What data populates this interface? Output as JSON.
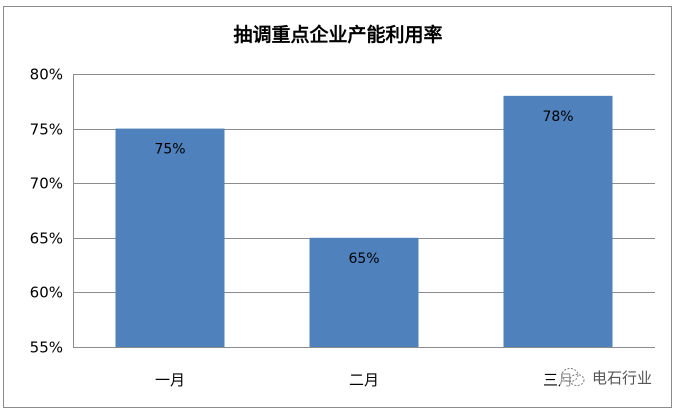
{
  "chart_data": {
    "type": "bar",
    "title": "抽调重点企业产能利用率",
    "categories": [
      "一月",
      "二月",
      "三月"
    ],
    "values": [
      75,
      65,
      78
    ],
    "data_labels": [
      "75%",
      "65%",
      "78%"
    ],
    "ylim": [
      55,
      80
    ],
    "yticks": [
      "55%",
      "60%",
      "65%",
      "70%",
      "75%",
      "80%"
    ],
    "ytick_values": [
      55,
      60,
      65,
      70,
      75,
      80
    ],
    "grid": true,
    "legend": "none",
    "bar_color": "#4f81bd",
    "xlabel": "",
    "ylabel": ""
  },
  "watermark": {
    "text": "电石行业",
    "icon": "wechat-icon"
  }
}
